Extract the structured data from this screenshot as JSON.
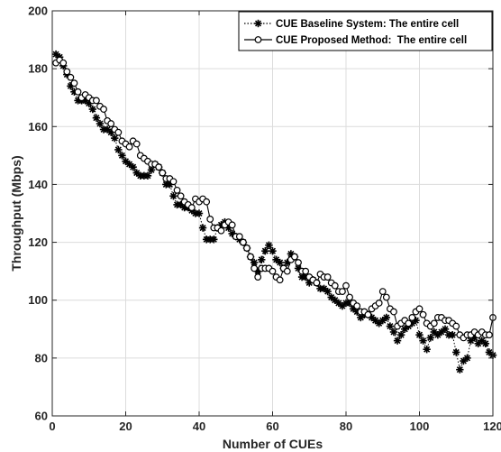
{
  "chart_data": {
    "type": "line",
    "title": "",
    "xlabel": "Number of CUEs",
    "ylabel": "Throughput (Mbps)",
    "xlim": [
      0,
      120
    ],
    "ylim": [
      60,
      200
    ],
    "xticks": [
      "0",
      "20",
      "40",
      "60",
      "80",
      "100",
      "120"
    ],
    "yticks": [
      "60",
      "80",
      "100",
      "120",
      "140",
      "160",
      "180",
      "200"
    ],
    "grid": true,
    "legend_position": "top-right",
    "series": [
      {
        "name": "CUE Baseline System: The entire cell",
        "marker": "asterisk",
        "line_style": "dotted",
        "color": "#000000",
        "x": [
          1,
          2,
          3,
          4,
          5,
          6,
          7,
          8,
          9,
          10,
          11,
          12,
          13,
          14,
          15,
          16,
          17,
          18,
          19,
          20,
          21,
          22,
          23,
          24,
          25,
          26,
          27,
          28,
          29,
          30,
          31,
          32,
          33,
          34,
          35,
          36,
          37,
          38,
          39,
          40,
          41,
          42,
          43,
          44,
          45,
          46,
          47,
          48,
          49,
          50,
          51,
          52,
          53,
          54,
          55,
          56,
          57,
          58,
          59,
          60,
          61,
          62,
          63,
          64,
          65,
          66,
          67,
          68,
          69,
          70,
          71,
          72,
          73,
          74,
          75,
          76,
          77,
          78,
          79,
          80,
          81,
          82,
          83,
          84,
          85,
          86,
          87,
          88,
          89,
          90,
          91,
          92,
          93,
          94,
          95,
          96,
          97,
          98,
          99,
          100,
          101,
          102,
          103,
          104,
          105,
          106,
          107,
          108,
          109,
          110,
          111,
          112,
          113,
          114,
          115,
          116,
          117,
          118,
          119,
          120
        ],
        "y": [
          185,
          184,
          181,
          178,
          174,
          172,
          169,
          169,
          169,
          168,
          166,
          163,
          161,
          159,
          159,
          158,
          156,
          152,
          150,
          148,
          147,
          146,
          144,
          143,
          143,
          143,
          145,
          147,
          146,
          144,
          140,
          140,
          136,
          133,
          133,
          132,
          132,
          131,
          130,
          130,
          125,
          121,
          121,
          121,
          125,
          126,
          127,
          125,
          123,
          122,
          121,
          120,
          118,
          115,
          113,
          110,
          114,
          117,
          119,
          117,
          114,
          113,
          111,
          113,
          116,
          115,
          111,
          108,
          108,
          106,
          107,
          106,
          104,
          104,
          103,
          101,
          100,
          99,
          98,
          99,
          99,
          97,
          96,
          94,
          95,
          95,
          94,
          93,
          92,
          93,
          94,
          91,
          89,
          86,
          88,
          90,
          91,
          92,
          93,
          88,
          86,
          83,
          87,
          89,
          88,
          89,
          90,
          88,
          88,
          82,
          76,
          79,
          80,
          86,
          87,
          85,
          86,
          85,
          82,
          81
        ]
      },
      {
        "name": "CUE Proposed Method:  The entire cell",
        "marker": "circle",
        "line_style": "solid",
        "color": "#000000",
        "x": [
          1,
          2,
          3,
          4,
          5,
          6,
          7,
          8,
          9,
          10,
          11,
          12,
          13,
          14,
          15,
          16,
          17,
          18,
          19,
          20,
          21,
          22,
          23,
          24,
          25,
          26,
          27,
          28,
          29,
          30,
          31,
          32,
          33,
          34,
          35,
          36,
          37,
          38,
          39,
          40,
          41,
          42,
          43,
          44,
          45,
          46,
          47,
          48,
          49,
          50,
          51,
          52,
          53,
          54,
          55,
          56,
          57,
          58,
          59,
          60,
          61,
          62,
          63,
          64,
          65,
          66,
          67,
          68,
          69,
          70,
          71,
          72,
          73,
          74,
          75,
          76,
          77,
          78,
          79,
          80,
          81,
          82,
          83,
          84,
          85,
          86,
          87,
          88,
          89,
          90,
          91,
          92,
          93,
          94,
          95,
          96,
          97,
          98,
          99,
          100,
          101,
          102,
          103,
          104,
          105,
          106,
          107,
          108,
          109,
          110,
          111,
          112,
          113,
          114,
          115,
          116,
          117,
          118,
          119,
          120
        ],
        "y": [
          182,
          183,
          182,
          179,
          177,
          175,
          172,
          170,
          171,
          170,
          169,
          169,
          167,
          166,
          162,
          161,
          159,
          158,
          155,
          154,
          153,
          155,
          154,
          150,
          149,
          148,
          147,
          147,
          146,
          144,
          142,
          142,
          141,
          138,
          136,
          134,
          133,
          132,
          135,
          134,
          135,
          134,
          128,
          125,
          125,
          124,
          126,
          127,
          126,
          122,
          122,
          120,
          118,
          115,
          111,
          108,
          111,
          111,
          111,
          110,
          108,
          107,
          111,
          110,
          114,
          115,
          113,
          110,
          110,
          108,
          107,
          106,
          109,
          108,
          108,
          106,
          105,
          103,
          103,
          105,
          101,
          99,
          98,
          96,
          96,
          95,
          97,
          98,
          99,
          103,
          101,
          97,
          96,
          91,
          92,
          93,
          92,
          94,
          96,
          97,
          95,
          92,
          91,
          92,
          94,
          94,
          93,
          93,
          92,
          91,
          88,
          87,
          88,
          88,
          89,
          88,
          89,
          88,
          88,
          94
        ]
      }
    ]
  }
}
